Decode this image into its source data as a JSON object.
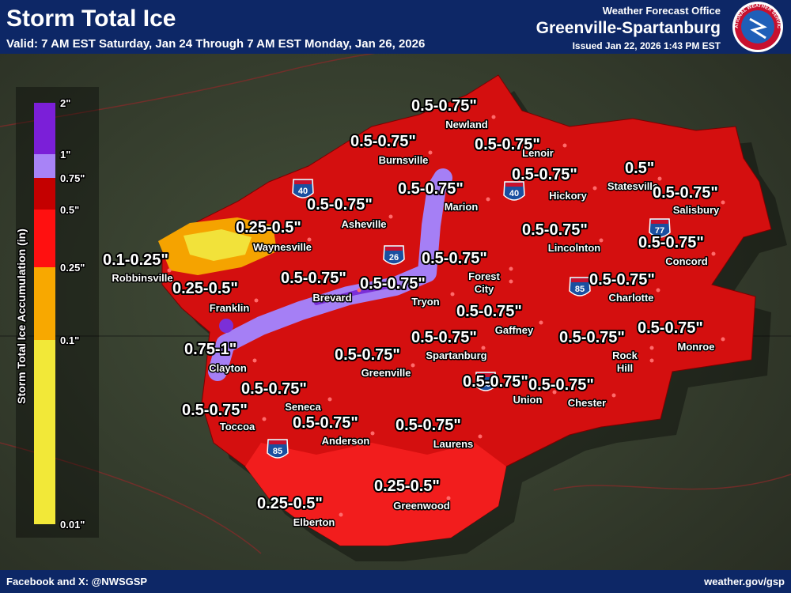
{
  "header": {
    "title": "Storm Total Ice",
    "valid": "Valid: 7 AM EST Saturday, Jan 24 Through 7 AM EST Monday, Jan 26, 2026",
    "office_line": "Weather Forecast Office",
    "office_name": "Greenville-Spartanburg",
    "issued": "Issued Jan 22, 2026 1:43 PM EST",
    "logo_text": "NATIONAL WEATHER SERVICE"
  },
  "legend": {
    "title": "Storm Total Ice Accumulation (in)",
    "ticks": [
      "2\"",
      "1\"",
      "0.75\"",
      "0.5\"",
      "0.25\"",
      "0.1\"",
      "0.01\""
    ]
  },
  "amounts": [
    "0.5-0.75\"",
    "0.5-0.75\"",
    "0.5-0.75\"",
    "0.5-0.75\"",
    "0.5\"",
    "0.5-0.75\"",
    "0.5-0.75\"",
    "0.5-0.75\"",
    "0.25-0.5\"",
    "0.5-0.75\"",
    "0.5-0.75\"",
    "0.1-0.25\"",
    "0.5-0.75\"",
    "0.5-0.75\"",
    "0.5-0.75\"",
    "0.25-0.5\"",
    "0.5-0.75\"",
    "0.5-0.75\"",
    "0.5-0.75\"",
    "0.5-0.75\"",
    "0.5-0.75\"",
    "0.5-0.75\"",
    "0.75-1\"",
    "0.5-0.75\"",
    "0.5-0.75\"",
    "0.5-0.75\"",
    "0.5-0.75\"",
    "0.5-0.75\"",
    "0.5-0.75\"",
    "0.25-0.5\"",
    "0.25-0.5\""
  ],
  "cities": [
    "Newland",
    "Burnsville",
    "Lenoir",
    "Statesville",
    "Hickory",
    "Marion",
    "Salisbury",
    "Asheville",
    "Waynesville",
    "Lincolnton",
    "Concord",
    "Robbinsville",
    "Forest",
    "City",
    "Brevard",
    "Tryon",
    "Charlotte",
    "Franklin",
    "Gaffney",
    "Monroe",
    "Rock",
    "Hill",
    "Spartanburg",
    "Greenville",
    "Clayton",
    "Union",
    "Chester",
    "Seneca",
    "Toccoa",
    "Anderson",
    "Laurens",
    "Greenwood",
    "Elberton"
  ],
  "highways": [
    "40",
    "40",
    "77",
    "26",
    "85",
    "26",
    "85"
  ],
  "footer": {
    "left": "Facebook and X: @NWSGSP",
    "right": "weather.gov/gsp"
  }
}
